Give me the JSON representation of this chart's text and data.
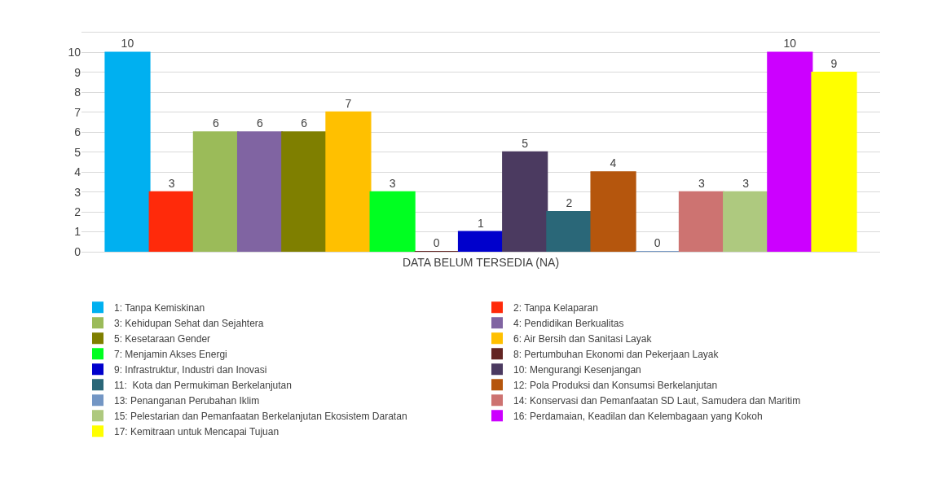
{
  "chart_data": {
    "type": "bar",
    "categories": [
      "DATA BELUM TERSEDIA (NA)"
    ],
    "series": [
      {
        "name": "1: Tanpa Kemiskinan",
        "color": "#00b0f0",
        "values": [
          10
        ]
      },
      {
        "name": "2: Tanpa Kelaparan",
        "color": "#ff2a0a",
        "values": [
          3
        ]
      },
      {
        "name": "3: Kehidupan Sehat dan Sejahtera",
        "color": "#9bbb59",
        "values": [
          6
        ]
      },
      {
        "name": "4: Pendidikan Berkualitas",
        "color": "#8064a2",
        "values": [
          6
        ]
      },
      {
        "name": "5: Kesetaraan Gender",
        "color": "#7f7f00",
        "values": [
          6
        ]
      },
      {
        "name": "6: Air Bersih dan Sanitasi Layak",
        "color": "#ffc000",
        "values": [
          7
        ]
      },
      {
        "name": "7: Menjamin Akses Energi",
        "color": "#00ff21",
        "values": [
          3
        ]
      },
      {
        "name": "8: Pertumbuhan Ekonomi dan Pekerjaan Layak",
        "color": "#632523",
        "values": [
          0
        ]
      },
      {
        "name": "9: Infrastruktur, Industri dan Inovasi",
        "color": "#0000cc",
        "values": [
          1
        ]
      },
      {
        "name": "10: Mengurangi Kesenjangan",
        "color": "#4b3a60",
        "values": [
          5
        ]
      },
      {
        "name": "11:  Kota dan Permukiman Berkelanjutan",
        "color": "#2a6778",
        "values": [
          2
        ]
      },
      {
        "name": "12: Pola Produksi dan Konsumsi Berkelanjutan",
        "color": "#b5560d",
        "values": [
          4
        ]
      },
      {
        "name": "13: Penanganan Perubahan Iklim",
        "color": "#7396c4",
        "values": [
          0
        ]
      },
      {
        "name": "14: Konservasi dan Pemanfaatan SD Laut, Samudera dan Maritim",
        "color": "#cd7371",
        "values": [
          3
        ]
      },
      {
        "name": "15: Pelestarian dan Pemanfaatan Berkelanjutan Ekosistem Daratan",
        "color": "#aec97f",
        "values": [
          3
        ]
      },
      {
        "name": "16: Perdamaian, Keadilan dan Kelembagaan yang Kokoh",
        "color": "#cc00ff",
        "values": [
          10
        ]
      },
      {
        "name": "17: Kemitraan untuk Mencapai Tujuan",
        "color": "#ffff00",
        "values": [
          9
        ]
      }
    ],
    "ylim": [
      0,
      11
    ],
    "yticks": [
      0,
      1,
      2,
      3,
      4,
      5,
      6,
      7,
      8,
      9,
      10
    ],
    "grid": "y",
    "data_labels": true,
    "legend": "bottom"
  }
}
